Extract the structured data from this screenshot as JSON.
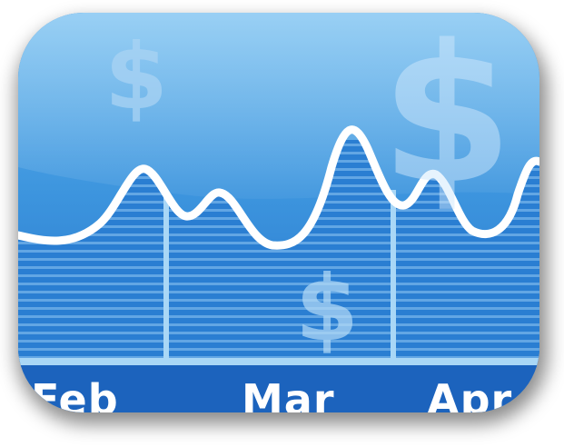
{
  "icon": {
    "months": [
      "Feb",
      "Mar",
      "Apr"
    ],
    "symbol": "$",
    "colors": {
      "tile_top": "#62b6ee",
      "tile_mid": "#3d95de",
      "tile_bottom": "#1f6cc7",
      "axis_band": "#1c63bd",
      "stripes": "#8fc6f2",
      "gridline": "#a9d7f6",
      "line": "#ffffff"
    }
  }
}
